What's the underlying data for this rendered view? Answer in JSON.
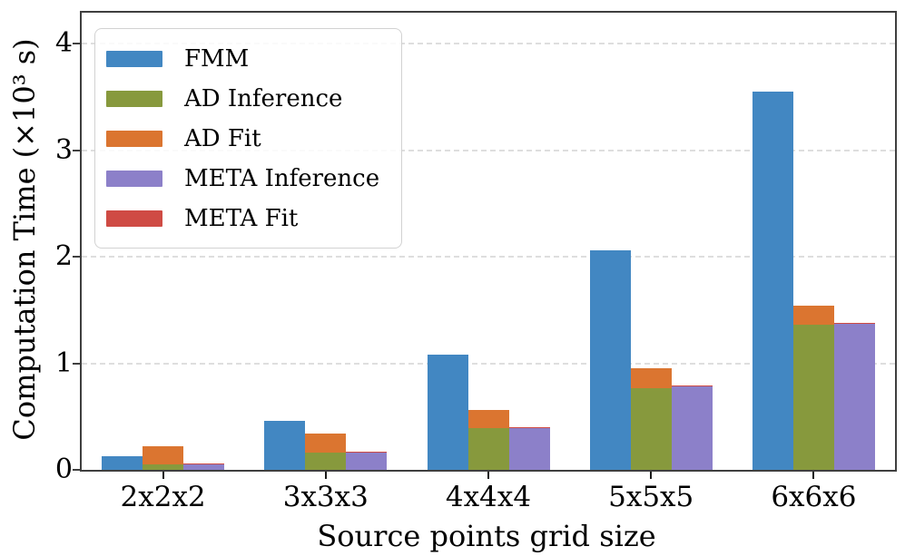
{
  "chart": {
    "xlabel": "Source points grid size",
    "ylabel": "Computation Time (×10³ s)"
  },
  "chart_data": {
    "type": "bar",
    "title": "",
    "xlabel": "Source points grid size",
    "ylabel": "Computation Time (×10³ s)",
    "categories": [
      "2x2x2",
      "3x3x3",
      "4x4x4",
      "5x5x5",
      "6x6x6"
    ],
    "series": [
      {
        "name": "FMM",
        "color": "#4287C2",
        "column": 0,
        "values": [
          0.13,
          0.46,
          1.08,
          2.06,
          3.55
        ]
      },
      {
        "name": "AD Inference",
        "color": "#87993D",
        "column": 1,
        "values": [
          0.05,
          0.16,
          0.39,
          0.77,
          1.36
        ]
      },
      {
        "name": "AD Fit",
        "color": "#DB7530",
        "column": 1,
        "stacked_on": "AD Inference",
        "values": [
          0.17,
          0.18,
          0.17,
          0.18,
          0.18
        ]
      },
      {
        "name": "META Inference",
        "color": "#8C80C9",
        "column": 2,
        "values": [
          0.05,
          0.16,
          0.39,
          0.78,
          1.37
        ]
      },
      {
        "name": "META Fit",
        "color": "#CF4B44",
        "column": 2,
        "stacked_on": "META Inference",
        "values": [
          0.01,
          0.01,
          0.01,
          0.01,
          0.01
        ]
      }
    ],
    "ylim": [
      0,
      4.29
    ],
    "yticks": [
      0,
      1,
      2,
      3,
      4
    ],
    "grid": "horizontal dashed at yticks",
    "legend_position": "upper left",
    "bar_layout": "3 columns per group: FMM | AD Inference+AD Fit stacked | META Inference+META Fit stacked"
  }
}
